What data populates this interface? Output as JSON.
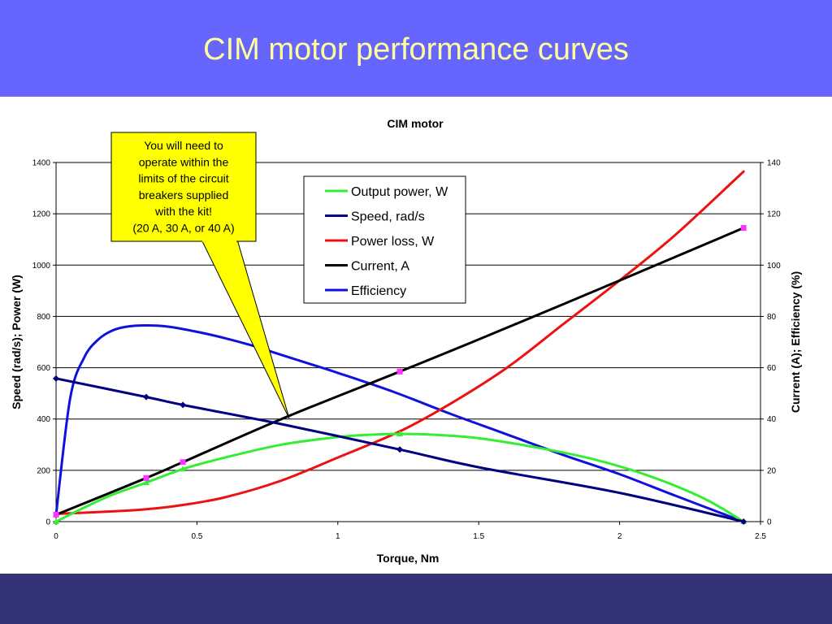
{
  "slide_title": "CIM motor performance curves",
  "colors": {
    "title_band": "#6666ff",
    "title_text": "#ffff99",
    "bottom_band": "#333377",
    "callout_fill": "#ffff00"
  },
  "callout": {
    "lines": [
      "You will need to",
      "operate within the",
      "limits of the circuit",
      "breakers supplied",
      "with the kit!",
      "(20 A, 30 A, or 40 A)"
    ]
  },
  "chart_data": {
    "type": "line",
    "title": "CIM motor",
    "xlabel": "Torque,  Nm",
    "ylabel_left": "Speed (rad/s);  Power (W)",
    "ylabel_right": "Current (A); Efficiency (%)",
    "xlim": [
      0,
      2.5
    ],
    "ylim_left": [
      0,
      1400
    ],
    "ylim_right": [
      0,
      140
    ],
    "x_ticks": [
      0,
      0.5,
      1,
      1.5,
      2,
      2.5
    ],
    "x_tick_labels": [
      "0",
      "0.5",
      "1",
      "1.5",
      "2",
      "2.5"
    ],
    "y_left_ticks": [
      0,
      200,
      400,
      600,
      800,
      1000,
      1200,
      1400
    ],
    "y_left_tick_labels": [
      "0",
      "200",
      "400",
      "600",
      "800",
      "1000",
      "1200",
      "1400"
    ],
    "y_right_ticks": [
      0,
      20,
      40,
      60,
      80,
      100,
      120,
      140
    ],
    "y_right_tick_labels": [
      "0",
      "20",
      "40",
      "60",
      "80",
      "100",
      "120",
      "140"
    ],
    "grid": "horizontal",
    "legend_position": "top-center",
    "series": [
      {
        "name": "Output power, W",
        "color": "#33ee33",
        "axis": "left",
        "x": [
          0,
          0.1,
          0.2,
          0.32,
          0.45,
          0.6,
          0.8,
          1.0,
          1.1,
          1.22,
          1.35,
          1.5,
          1.7,
          1.9,
          2.1,
          2.3,
          2.44
        ],
        "y": [
          0,
          55,
          105,
          152,
          205,
          250,
          300,
          330,
          338,
          342,
          338,
          325,
          290,
          245,
          180,
          90,
          0
        ],
        "markers": [
          {
            "x": 0,
            "y": 0
          },
          {
            "x": 0.32,
            "y": 152
          },
          {
            "x": 0.45,
            "y": 205
          },
          {
            "x": 1.22,
            "y": 342
          },
          {
            "x": 2.44,
            "y": 0
          }
        ],
        "marker": "triangle"
      },
      {
        "name": "Speed, rad/s",
        "color": "#000080",
        "axis": "left",
        "x": [
          0,
          0.32,
          0.45,
          0.8,
          1.22,
          1.5,
          2.0,
          2.44
        ],
        "y": [
          558,
          486,
          455,
          380,
          281,
          212,
          112,
          0
        ],
        "markers": [
          {
            "x": 0,
            "y": 558
          },
          {
            "x": 0.32,
            "y": 486
          },
          {
            "x": 0.45,
            "y": 455
          },
          {
            "x": 1.22,
            "y": 281
          },
          {
            "x": 2.44,
            "y": 0
          }
        ],
        "marker": "diamond"
      },
      {
        "name": "Power loss, W",
        "color": "#ee1111",
        "axis": "left",
        "x": [
          0,
          0.2,
          0.32,
          0.45,
          0.6,
          0.8,
          1.0,
          1.22,
          1.4,
          1.6,
          1.8,
          2.0,
          2.2,
          2.44
        ],
        "y": [
          30,
          40,
          48,
          65,
          95,
          160,
          250,
          352,
          460,
          600,
          770,
          940,
          1120,
          1365
        ],
        "markers": [],
        "marker": "none"
      },
      {
        "name": "Current, A",
        "color": "#000000",
        "axis": "right",
        "x": [
          0,
          0.32,
          0.45,
          0.8,
          1.22,
          1.5,
          2.0,
          2.44
        ],
        "y": [
          2.7,
          17,
          23.2,
          40,
          58.5,
          71,
          94,
          114.5
        ],
        "markers": [
          {
            "x": 0,
            "y": 2.7
          },
          {
            "x": 0.32,
            "y": 17
          },
          {
            "x": 0.45,
            "y": 23.2
          },
          {
            "x": 1.22,
            "y": 58.5
          },
          {
            "x": 2.44,
            "y": 114.5
          }
        ],
        "marker": "square",
        "marker_color": "#ff33ff"
      },
      {
        "name": "Efficiency",
        "color": "#1111dd",
        "axis": "right",
        "x": [
          0,
          0.05,
          0.1,
          0.15,
          0.2,
          0.25,
          0.32,
          0.4,
          0.5,
          0.6,
          0.7,
          0.8,
          0.9,
          1.0,
          1.2,
          1.4,
          1.6,
          1.8,
          2.0,
          2.2,
          2.44
        ],
        "y": [
          2.7,
          48,
          64,
          71,
          74.5,
          76,
          76.5,
          76,
          74,
          71.5,
          68.5,
          65,
          61.5,
          58,
          50.5,
          42,
          34,
          26,
          18.5,
          10,
          0
        ],
        "markers": [],
        "marker": "none"
      }
    ]
  }
}
